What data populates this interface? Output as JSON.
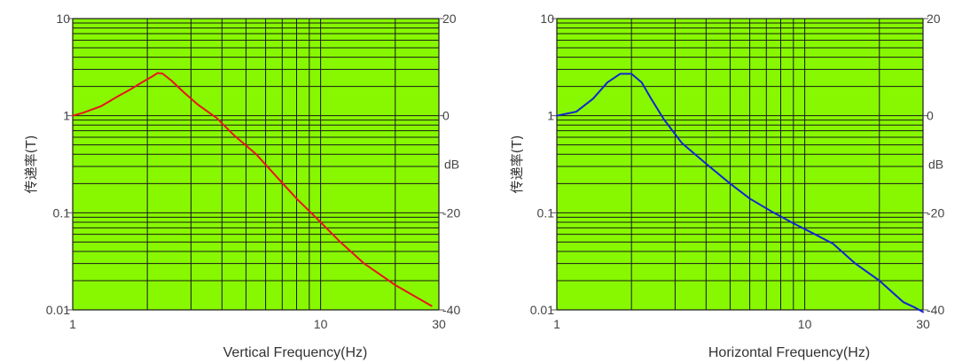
{
  "chart_data": [
    {
      "type": "line",
      "xlabel": "Vertical Frequency(Hz)",
      "ylabel": "传递率(T)",
      "y2label": "dB",
      "x_scale": "log",
      "y_scale": "log",
      "xlim": [
        1,
        30
      ],
      "ylim": [
        0.01,
        10
      ],
      "x_tick_labels": [
        "1",
        "10",
        "30"
      ],
      "y_tick_labels": [
        "0.01",
        "0.1",
        "1",
        "10"
      ],
      "y2_tick_labels": [
        "-40",
        "-20",
        "0",
        "20"
      ],
      "grid": true,
      "background_color": "#87f800",
      "series": [
        {
          "color": "#e8141e",
          "x": [
            1,
            1.1,
            1.2,
            1.3,
            1.5,
            1.7,
            1.9,
            2.1,
            2.2,
            2.3,
            2.5,
            2.8,
            3.2,
            3.8,
            4.5,
            5.5,
            6.5,
            8,
            10,
            12,
            15,
            20,
            28
          ],
          "y": [
            1.0,
            1.07,
            1.16,
            1.25,
            1.55,
            1.85,
            2.2,
            2.55,
            2.75,
            2.72,
            2.3,
            1.75,
            1.3,
            0.95,
            0.62,
            0.4,
            0.25,
            0.14,
            0.08,
            0.05,
            0.03,
            0.018,
            0.011
          ]
        }
      ]
    },
    {
      "type": "line",
      "xlabel": "Horizontal Frequency(Hz)",
      "ylabel": "传递率(T)",
      "y2label": "dB",
      "x_scale": "log",
      "y_scale": "log",
      "xlim": [
        1,
        30
      ],
      "ylim": [
        0.01,
        10
      ],
      "x_tick_labels": [
        "1",
        "10",
        "30"
      ],
      "y_tick_labels": [
        "0.01",
        "0.1",
        "1",
        "10"
      ],
      "y2_tick_labels": [
        "-40",
        "-20",
        "0",
        "20"
      ],
      "grid": true,
      "background_color": "#87f800",
      "series": [
        {
          "color": "#1326d0",
          "x": [
            1,
            1.2,
            1.4,
            1.6,
            1.8,
            2.0,
            2.2,
            2.4,
            2.7,
            3.2,
            4,
            5,
            6,
            7.5,
            9,
            11,
            13,
            16,
            20,
            25,
            28,
            30
          ],
          "y": [
            1.0,
            1.1,
            1.5,
            2.2,
            2.7,
            2.7,
            2.2,
            1.5,
            0.92,
            0.52,
            0.32,
            0.2,
            0.14,
            0.1,
            0.078,
            0.06,
            0.048,
            0.03,
            0.02,
            0.012,
            0.0105,
            0.0095
          ]
        }
      ]
    }
  ]
}
